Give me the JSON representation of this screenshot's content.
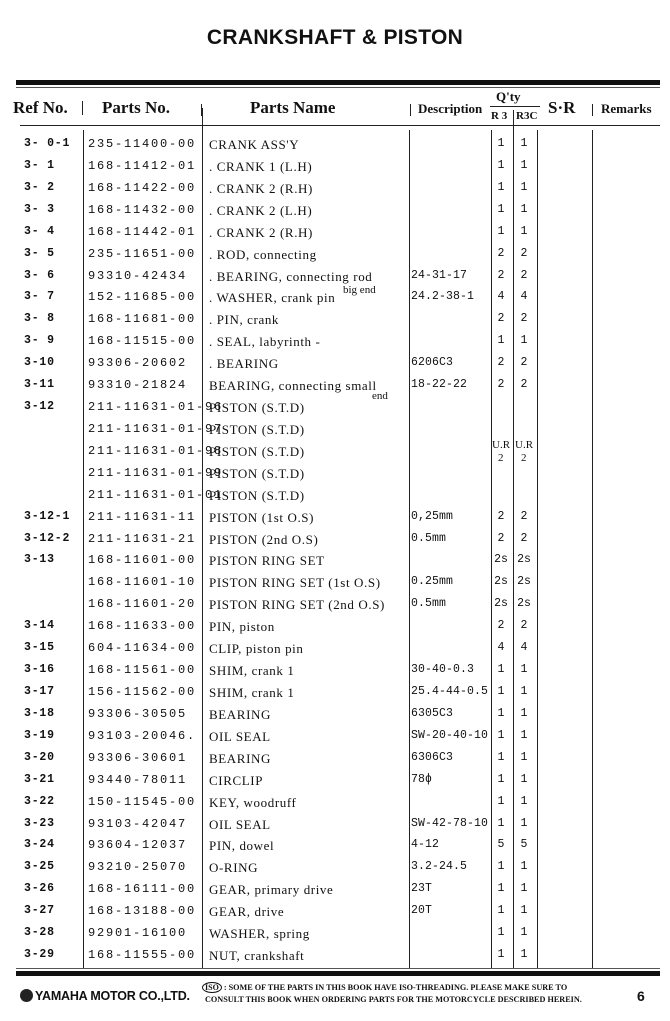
{
  "title": "CRANKSHAFT & PISTON",
  "header": {
    "ref_no": "Ref No.",
    "parts_no": "Parts No.",
    "parts_name": "Parts Name",
    "description": "Description",
    "qty": "Q'ty",
    "qty_r3": "R 3",
    "qty_r3c": "R3C",
    "sr": "S·R",
    "remarks": "Remarks"
  },
  "rows": [
    {
      "ref": "3- 0-1",
      "part_no": "235-11400-00",
      "name": "CRANK ASS'Y",
      "desc": "",
      "r3": "1",
      "r3c": "1"
    },
    {
      "ref": "3- 1",
      "part_no": "168-11412-01",
      "name": ". CRANK 1 (L.H)",
      "desc": "",
      "r3": "1",
      "r3c": "1"
    },
    {
      "ref": "3- 2",
      "part_no": "168-11422-00",
      "name": ". CRANK 2 (R.H)",
      "desc": "",
      "r3": "1",
      "r3c": "1"
    },
    {
      "ref": "3- 3",
      "part_no": "168-11432-00",
      "name": ". CRANK 2 (L.H)",
      "desc": "",
      "r3": "1",
      "r3c": "1"
    },
    {
      "ref": "3- 4",
      "part_no": "168-11442-01",
      "name": ". CRANK 2 (R.H)",
      "desc": "",
      "r3": "1",
      "r3c": "1"
    },
    {
      "ref": "3- 5",
      "part_no": "235-11651-00",
      "name": ". ROD, connecting",
      "desc": "",
      "r3": "2",
      "r3c": "2"
    },
    {
      "ref": "3- 6",
      "part_no": "93310-42434",
      "name": ". BEARING, connecting rod",
      "desc": "24-31-17",
      "r3": "2",
      "r3c": "2"
    },
    {
      "ref": "3- 7",
      "part_no": "152-11685-00",
      "name": ". WASHER, crank pin",
      "name_note": "big end",
      "desc": "24.2-38-1",
      "r3": "4",
      "r3c": "4"
    },
    {
      "ref": "3- 8",
      "part_no": "168-11681-00",
      "name": ". PIN, crank",
      "desc": "",
      "r3": "2",
      "r3c": "2"
    },
    {
      "ref": "3- 9",
      "part_no": "168-11515-00",
      "name": ". SEAL, labyrinth -",
      "desc": "",
      "r3": "1",
      "r3c": "1"
    },
    {
      "ref": "3-10",
      "part_no": "93306-20602",
      "name": ". BEARING",
      "desc": "6206C3",
      "r3": "2",
      "r3c": "2"
    },
    {
      "ref": "3-11",
      "part_no": "93310-21824",
      "name": "BEARING, connecting small",
      "name_note": "end",
      "desc": "18-22-22",
      "r3": "2",
      "r3c": "2"
    },
    {
      "ref": "3-12",
      "part_no": "211-11631-01-96",
      "name": "PISTON (S.T.D)",
      "desc": "",
      "r3": "",
      "r3c": ""
    },
    {
      "ref": "",
      "part_no": "211-11631-01-97",
      "name": "PISTON (S.T.D)",
      "desc": "",
      "r3": "",
      "r3c": ""
    },
    {
      "ref": "",
      "part_no": "211-11631-01-98",
      "name": "PISTON (S.T.D)",
      "desc": "",
      "r3": "",
      "r3c": ""
    },
    {
      "ref": "",
      "part_no": "211-11631-01-99",
      "name": "PISTON (S.T.D)",
      "desc": "",
      "r3": "",
      "r3c": ""
    },
    {
      "ref": "",
      "part_no": "211-11631-01-01",
      "name": "PISTON (S.T.D)",
      "desc": "",
      "r3": "",
      "r3c": ""
    },
    {
      "ref": "3-12-1",
      "part_no": "211-11631-11",
      "name": "PISTON (1st O.S)",
      "desc": "0,25mm",
      "r3": "2",
      "r3c": "2"
    },
    {
      "ref": "3-12-2",
      "part_no": "211-11631-21",
      "name": "PISTON (2nd O.S)",
      "desc": "0.5mm",
      "r3": "2",
      "r3c": "2"
    },
    {
      "ref": "3-13",
      "part_no": "168-11601-00",
      "name": "PISTON RING SET",
      "desc": "",
      "r3": "2s",
      "r3c": "2s"
    },
    {
      "ref": "",
      "part_no": "168-11601-10",
      "name": "PISTON RING SET (1st O.S)",
      "desc": "0.25mm",
      "r3": "2s",
      "r3c": "2s"
    },
    {
      "ref": "",
      "part_no": "168-11601-20",
      "name": "PISTON RING SET (2nd O.S)",
      "desc": "0.5mm",
      "r3": "2s",
      "r3c": "2s"
    },
    {
      "ref": "3-14",
      "part_no": "168-11633-00",
      "name": "PIN, piston",
      "desc": "",
      "r3": "2",
      "r3c": "2"
    },
    {
      "ref": "3-15",
      "part_no": "604-11634-00",
      "name": "CLIP, piston pin",
      "desc": "",
      "r3": "4",
      "r3c": "4"
    },
    {
      "ref": "3-16",
      "part_no": "168-11561-00",
      "name": "SHIM, crank 1",
      "desc": "30-40-0.3",
      "r3": "1",
      "r3c": "1"
    },
    {
      "ref": "3-17",
      "part_no": "156-11562-00",
      "name": "SHIM, crank 1",
      "desc": "25.4-44-0.5",
      "r3": "1",
      "r3c": "1"
    },
    {
      "ref": "3-18",
      "part_no": "93306-30505",
      "name": "BEARING",
      "desc": "6305C3",
      "r3": "1",
      "r3c": "1"
    },
    {
      "ref": "3-19",
      "part_no": "93103-20046.",
      "name": "OIL SEAL",
      "desc": "SW-20-40-10",
      "r3": "1",
      "r3c": "1"
    },
    {
      "ref": "3-20",
      "part_no": "93306-30601",
      "name": "BEARING",
      "desc": "6306C3",
      "r3": "1",
      "r3c": "1"
    },
    {
      "ref": "3-21",
      "part_no": "93440-78011",
      "name": "CIRCLIP",
      "desc": "78ϕ",
      "r3": "1",
      "r3c": "1"
    },
    {
      "ref": "3-22",
      "part_no": "150-11545-00",
      "name": "KEY, woodruff",
      "desc": "",
      "r3": "1",
      "r3c": "1"
    },
    {
      "ref": "3-23",
      "part_no": "93103-42047",
      "name": "OIL SEAL",
      "desc": "SW-42-78-10",
      "r3": "1",
      "r3c": "1"
    },
    {
      "ref": "3-24",
      "part_no": "93604-12037",
      "name": "PIN, dowel",
      "desc": "4-12",
      "r3": "5",
      "r3c": "5"
    },
    {
      "ref": "3-25",
      "part_no": "93210-25070",
      "name": "O-RING",
      "desc": "3.2-24.5",
      "r3": "1",
      "r3c": "1"
    },
    {
      "ref": "3-26",
      "part_no": "168-16111-00",
      "name": "GEAR, primary drive",
      "desc": "23T",
      "r3": "1",
      "r3c": "1"
    },
    {
      "ref": "3-27",
      "part_no": "168-13188-00",
      "name": "GEAR, drive",
      "desc": "20T",
      "r3": "1",
      "r3c": "1"
    },
    {
      "ref": "3-28",
      "part_no": "92901-16100",
      "name": "WASHER, spring",
      "desc": "",
      "r3": "1",
      "r3c": "1"
    },
    {
      "ref": "3-29",
      "part_no": "168-11555-00",
      "name": "NUT, crankshaft",
      "desc": "",
      "r3": "1",
      "r3c": "1"
    }
  ],
  "piston_qty_note": {
    "r3_label": "U.R",
    "r3_qty": "2",
    "r3c_label": "U.R",
    "r3c_qty": "2"
  },
  "footer": {
    "company": "YAMAHA MOTOR CO.,LTD.",
    "iso_mark": "ISO",
    "notice_line1": ": SOME OF THE PARTS IN THIS BOOK HAVE ISO-THREADING.  PLEASE MAKE SURE TO",
    "notice_line2": "CONSULT THIS BOOK WHEN ORDERING PARTS FOR THE MOTORCYCLE DESCRIBED HEREIN.",
    "page_number": "6"
  }
}
